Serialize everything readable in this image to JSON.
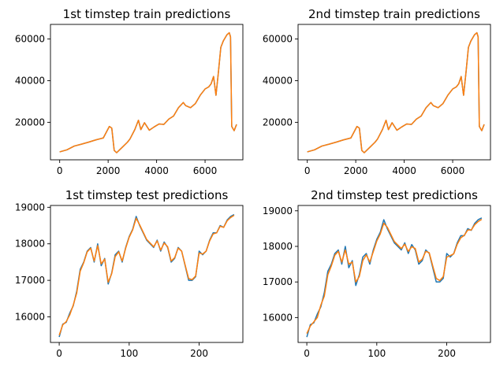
{
  "chart_data": [
    {
      "type": "line",
      "title": "1st timstep train predictions",
      "xlabel": "",
      "ylabel": "",
      "xlim": [
        -380,
        7560
      ],
      "ylim": [
        2000,
        67000
      ],
      "xticks": [
        0,
        2000,
        4000,
        6000
      ],
      "yticks": [
        20000,
        40000,
        60000
      ],
      "xtick_labels": [
        "0",
        "2000",
        "4000",
        "6000"
      ],
      "ytick_labels": [
        "20000",
        "40000",
        "60000"
      ],
      "grid": false,
      "legend": "none",
      "x": [
        0,
        300,
        600,
        900,
        1200,
        1500,
        1800,
        2050,
        2150,
        2250,
        2350,
        2600,
        2800,
        2900,
        3100,
        3250,
        3350,
        3500,
        3700,
        3900,
        4100,
        4300,
        4500,
        4700,
        4900,
        5100,
        5200,
        5400,
        5600,
        5800,
        6000,
        6150,
        6250,
        6350,
        6450,
        6550,
        6650,
        6750,
        6900,
        7000,
        7050,
        7100,
        7200,
        7300
      ],
      "series": [
        {
          "color": "#1f77b4",
          "values": [
            5800,
            6800,
            8600,
            9500,
            10500,
            11600,
            12500,
            18000,
            17200,
            6500,
            5400,
            8200,
            10500,
            12000,
            16500,
            21000,
            16500,
            19800,
            16200,
            17800,
            19200,
            19000,
            21500,
            23000,
            27000,
            29500,
            28000,
            27000,
            29000,
            33000,
            36000,
            37000,
            38500,
            42000,
            33000,
            44000,
            56000,
            59000,
            62000,
            63000,
            61000,
            18000,
            16000,
            19000
          ]
        },
        {
          "color": "#ff7f0e",
          "values": [
            5800,
            6800,
            8600,
            9500,
            10500,
            11600,
            12500,
            18000,
            17200,
            6500,
            5400,
            8200,
            10500,
            12000,
            16500,
            21000,
            16500,
            19800,
            16200,
            17800,
            19200,
            19000,
            21500,
            23000,
            27000,
            29500,
            28000,
            27000,
            29000,
            33000,
            36000,
            37000,
            38500,
            42000,
            33000,
            44000,
            56000,
            59000,
            62000,
            63000,
            61000,
            18000,
            16000,
            19000
          ]
        }
      ]
    },
    {
      "type": "line",
      "title": "2nd timstep train predictions",
      "xlabel": "",
      "ylabel": "",
      "xlim": [
        -380,
        7560
      ],
      "ylim": [
        2000,
        67000
      ],
      "xticks": [
        0,
        2000,
        4000,
        6000
      ],
      "yticks": [
        20000,
        40000,
        60000
      ],
      "xtick_labels": [
        "0",
        "2000",
        "4000",
        "6000"
      ],
      "ytick_labels": [
        "20000",
        "40000",
        "60000"
      ],
      "grid": false,
      "legend": "none",
      "x": [
        0,
        300,
        600,
        900,
        1200,
        1500,
        1800,
        2050,
        2150,
        2250,
        2350,
        2600,
        2800,
        2900,
        3100,
        3250,
        3350,
        3500,
        3700,
        3900,
        4100,
        4300,
        4500,
        4700,
        4900,
        5100,
        5200,
        5400,
        5600,
        5800,
        6000,
        6150,
        6250,
        6350,
        6450,
        6550,
        6650,
        6750,
        6900,
        7000,
        7050,
        7100,
        7200,
        7300
      ],
      "series": [
        {
          "color": "#1f77b4",
          "values": [
            5800,
            6800,
            8600,
            9500,
            10500,
            11600,
            12500,
            18000,
            17200,
            6500,
            5400,
            8200,
            10500,
            12000,
            16500,
            21000,
            16500,
            19800,
            16200,
            17800,
            19200,
            19000,
            21500,
            23000,
            27000,
            29500,
            28000,
            27000,
            29000,
            33000,
            36000,
            37000,
            38500,
            42000,
            33000,
            44000,
            56000,
            59000,
            62000,
            63000,
            61000,
            18000,
            16000,
            19000
          ]
        },
        {
          "color": "#ff7f0e",
          "values": [
            5800,
            6800,
            8600,
            9500,
            10500,
            11600,
            12500,
            18000,
            17200,
            6500,
            5400,
            8200,
            10500,
            12000,
            16500,
            21000,
            16500,
            19800,
            16200,
            17800,
            19200,
            19000,
            21500,
            23000,
            27000,
            29500,
            28000,
            27000,
            29000,
            33000,
            36000,
            37000,
            38500,
            42000,
            33000,
            44000,
            56000,
            59000,
            62000,
            63000,
            61000,
            18000,
            16000,
            19000
          ]
        }
      ]
    },
    {
      "type": "line",
      "title": "1st timstep test predictions",
      "xlabel": "",
      "ylabel": "",
      "xlim": [
        -12.5,
        262.5
      ],
      "ylim": [
        15300,
        19050
      ],
      "xticks": [
        0,
        100,
        200
      ],
      "yticks": [
        16000,
        17000,
        18000,
        19000
      ],
      "xtick_labels": [
        "0",
        "100",
        "200"
      ],
      "ytick_labels": [
        "16000",
        "17000",
        "18000",
        "19000"
      ],
      "grid": false,
      "legend": "none",
      "x": [
        0,
        5,
        10,
        15,
        20,
        25,
        30,
        35,
        40,
        45,
        50,
        55,
        60,
        65,
        70,
        75,
        80,
        85,
        90,
        95,
        100,
        105,
        110,
        115,
        120,
        125,
        130,
        135,
        140,
        145,
        150,
        155,
        160,
        165,
        170,
        175,
        180,
        185,
        190,
        195,
        200,
        205,
        210,
        215,
        220,
        225,
        230,
        235,
        240,
        245,
        250
      ],
      "series": [
        {
          "color": "#1f77b4",
          "values": [
            15450,
            15800,
            15850,
            16100,
            16300,
            16700,
            17300,
            17500,
            17800,
            17900,
            17500,
            18000,
            17400,
            17600,
            16900,
            17200,
            17700,
            17800,
            17500,
            17900,
            18200,
            18400,
            18750,
            18500,
            18300,
            18100,
            18000,
            17900,
            18100,
            17800,
            18050,
            17900,
            17500,
            17600,
            17900,
            17800,
            17400,
            17000,
            17000,
            17100,
            17800,
            17700,
            17800,
            18100,
            18300,
            18300,
            18500,
            18450,
            18650,
            18750,
            18800
          ]
        },
        {
          "color": "#ff7f0e",
          "values": [
            15500,
            15780,
            15870,
            16050,
            16320,
            16650,
            17250,
            17480,
            17780,
            17880,
            17530,
            17950,
            17450,
            17580,
            16950,
            17180,
            17650,
            17780,
            17530,
            17880,
            18180,
            18380,
            18700,
            18520,
            18320,
            18120,
            18020,
            17920,
            18080,
            17830,
            18020,
            17920,
            17530,
            17620,
            17880,
            17800,
            17420,
            17050,
            17020,
            17120,
            17750,
            17720,
            17800,
            18080,
            18270,
            18300,
            18480,
            18450,
            18630,
            18720,
            18780
          ]
        }
      ]
    },
    {
      "type": "line",
      "title": "2nd timstep test predictions",
      "xlabel": "",
      "ylabel": "",
      "xlim": [
        -12.5,
        262.5
      ],
      "ylim": [
        15300,
        19150
      ],
      "xticks": [
        0,
        100,
        200
      ],
      "yticks": [
        16000,
        17000,
        18000,
        19000
      ],
      "xtick_labels": [
        "0",
        "100",
        "200"
      ],
      "ytick_labels": [
        "16000",
        "17000",
        "18000",
        "19000"
      ],
      "grid": false,
      "legend": "none",
      "x": [
        0,
        5,
        10,
        15,
        20,
        25,
        30,
        35,
        40,
        45,
        50,
        55,
        60,
        65,
        70,
        75,
        80,
        85,
        90,
        95,
        100,
        105,
        110,
        115,
        120,
        125,
        130,
        135,
        140,
        145,
        150,
        155,
        160,
        165,
        170,
        175,
        180,
        185,
        190,
        195,
        200,
        205,
        210,
        215,
        220,
        225,
        230,
        235,
        240,
        245,
        250
      ],
      "series": [
        {
          "color": "#1f77b4",
          "values": [
            15450,
            15800,
            15850,
            16100,
            16300,
            16700,
            17300,
            17500,
            17800,
            17900,
            17500,
            18000,
            17400,
            17600,
            16900,
            17200,
            17700,
            17800,
            17500,
            17900,
            18200,
            18400,
            18750,
            18500,
            18300,
            18100,
            18000,
            17900,
            18100,
            17800,
            18050,
            17900,
            17500,
            17600,
            17900,
            17800,
            17400,
            17000,
            17000,
            17100,
            17800,
            17700,
            17800,
            18100,
            18300,
            18300,
            18500,
            18450,
            18650,
            18750,
            18800
          ]
        },
        {
          "color": "#ff7f0e",
          "values": [
            15550,
            15760,
            15880,
            16000,
            16350,
            16600,
            17200,
            17450,
            17750,
            17860,
            17560,
            17900,
            17500,
            17560,
            17000,
            17150,
            17600,
            17760,
            17560,
            17850,
            18150,
            18350,
            18650,
            18540,
            18340,
            18140,
            18040,
            17940,
            18060,
            17860,
            17990,
            17940,
            17560,
            17640,
            17860,
            17820,
            17450,
            17100,
            17040,
            17150,
            17700,
            17740,
            17790,
            18060,
            18240,
            18310,
            18460,
            18460,
            18610,
            18700,
            18760
          ]
        }
      ]
    }
  ]
}
